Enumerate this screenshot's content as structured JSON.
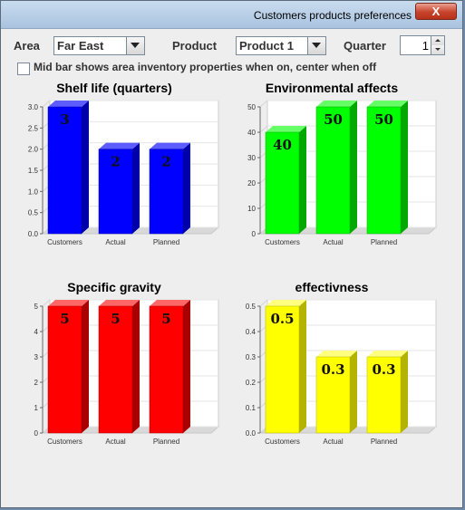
{
  "window": {
    "title": "Customers products preferences",
    "close_label": "X"
  },
  "controls": {
    "area_label": "Area",
    "area_value": "Far East",
    "product_label": "Product",
    "product_value": "Product 1",
    "quarter_label": "Quarter",
    "quarter_value": "1",
    "checkbox_label": "Mid bar shows area inventory properties when on, center when off",
    "checkbox_checked": false
  },
  "chart_data": [
    {
      "type": "bar",
      "title": "Shelf life (quarters)",
      "categories": [
        "Customers",
        "Actual",
        "Planned"
      ],
      "values": [
        3,
        2,
        2
      ],
      "value_labels": [
        "3",
        "2",
        "2"
      ],
      "ylim": [
        0,
        3.0
      ],
      "yticks": [
        "0.0",
        "0.5",
        "1.0",
        "1.5",
        "2.0",
        "2.5",
        "3.0"
      ],
      "color": "#0000ff",
      "dark": "#0000a8",
      "light": "#5c5cff"
    },
    {
      "type": "bar",
      "title": "Environmental affects",
      "categories": [
        "Customers",
        "Actual",
        "Planned"
      ],
      "values": [
        40,
        50,
        50
      ],
      "value_labels": [
        "40",
        "50",
        "50"
      ],
      "ylim": [
        0,
        50
      ],
      "yticks": [
        "0",
        "10",
        "20",
        "30",
        "40",
        "50"
      ],
      "color": "#00ff00",
      "dark": "#00a800",
      "light": "#66ff66"
    },
    {
      "type": "bar",
      "title": "Specific gravity",
      "categories": [
        "Customers",
        "Actual",
        "Planned"
      ],
      "values": [
        5,
        5,
        5
      ],
      "value_labels": [
        "5",
        "5",
        "5"
      ],
      "ylim": [
        0,
        5
      ],
      "yticks": [
        "0",
        "1",
        "2",
        "3",
        "4",
        "5"
      ],
      "color": "#ff0000",
      "dark": "#a80000",
      "light": "#ff6666"
    },
    {
      "type": "bar",
      "title": "effectivness",
      "categories": [
        "Customers",
        "Actual",
        "Planned"
      ],
      "values": [
        0.5,
        0.3,
        0.3
      ],
      "value_labels": [
        "0.5",
        "0.3",
        "0.3"
      ],
      "ylim": [
        0,
        0.5
      ],
      "yticks": [
        "0.0",
        "0.1",
        "0.2",
        "0.3",
        "0.4",
        "0.5"
      ],
      "color": "#ffff00",
      "dark": "#b3b300",
      "light": "#ffff80"
    }
  ]
}
